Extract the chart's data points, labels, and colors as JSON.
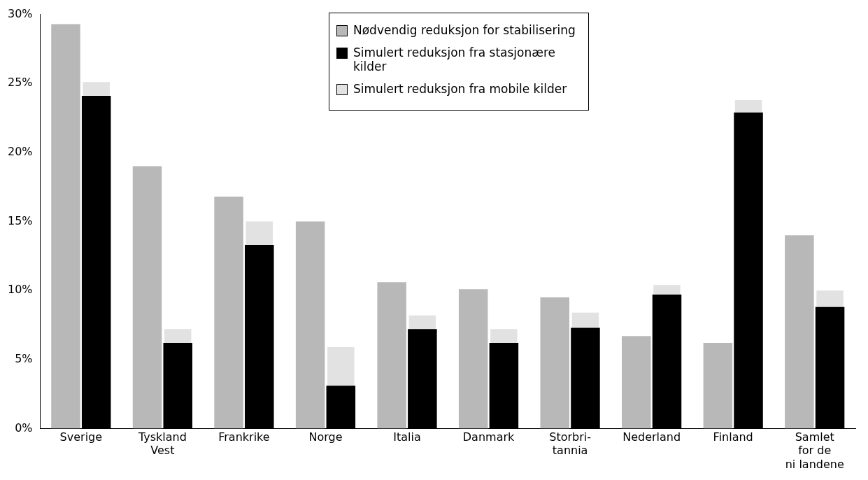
{
  "chart_data": {
    "type": "bar",
    "categories": [
      "Sverige",
      "Tyskland\nVest",
      "Frankrike",
      "Norge",
      "Italia",
      "Danmark",
      "Storbri-\ntannia",
      "Nederland",
      "Finland",
      "Samlet\nfor de\nni landene"
    ],
    "series": [
      {
        "name": "Nødvendig reduksjon for stabilisering",
        "color": "#b8b8b8",
        "values": [
          29.3,
          19.0,
          16.8,
          15.0,
          10.6,
          10.1,
          9.5,
          6.7,
          6.2,
          14.0
        ]
      },
      {
        "name": "Simulert reduksjon fra stasjonære kilder",
        "color": "#000000",
        "values": [
          24.1,
          6.2,
          13.3,
          3.1,
          7.2,
          6.2,
          7.3,
          9.7,
          22.9,
          8.8
        ]
      },
      {
        "name": "Simulert reduksjon fra mobile kilder",
        "color": "#e2e2e2",
        "values": [
          1.0,
          1.0,
          1.7,
          2.8,
          1.0,
          1.0,
          1.1,
          0.7,
          0.9,
          1.2
        ],
        "base": [
          24.1,
          6.2,
          13.3,
          3.1,
          7.2,
          6.2,
          7.3,
          9.7,
          22.9,
          8.8
        ]
      }
    ],
    "ylim": [
      0,
      30
    ],
    "yticks": [
      {
        "value": 0,
        "label": "0%"
      },
      {
        "value": 5,
        "label": "5%"
      },
      {
        "value": 10,
        "label": "10%"
      },
      {
        "value": 15,
        "label": "15%"
      },
      {
        "value": 20,
        "label": "20%"
      },
      {
        "value": 25,
        "label": "25%"
      },
      {
        "value": 30,
        "label": "30%"
      }
    ],
    "grid": false,
    "legend": "top"
  }
}
